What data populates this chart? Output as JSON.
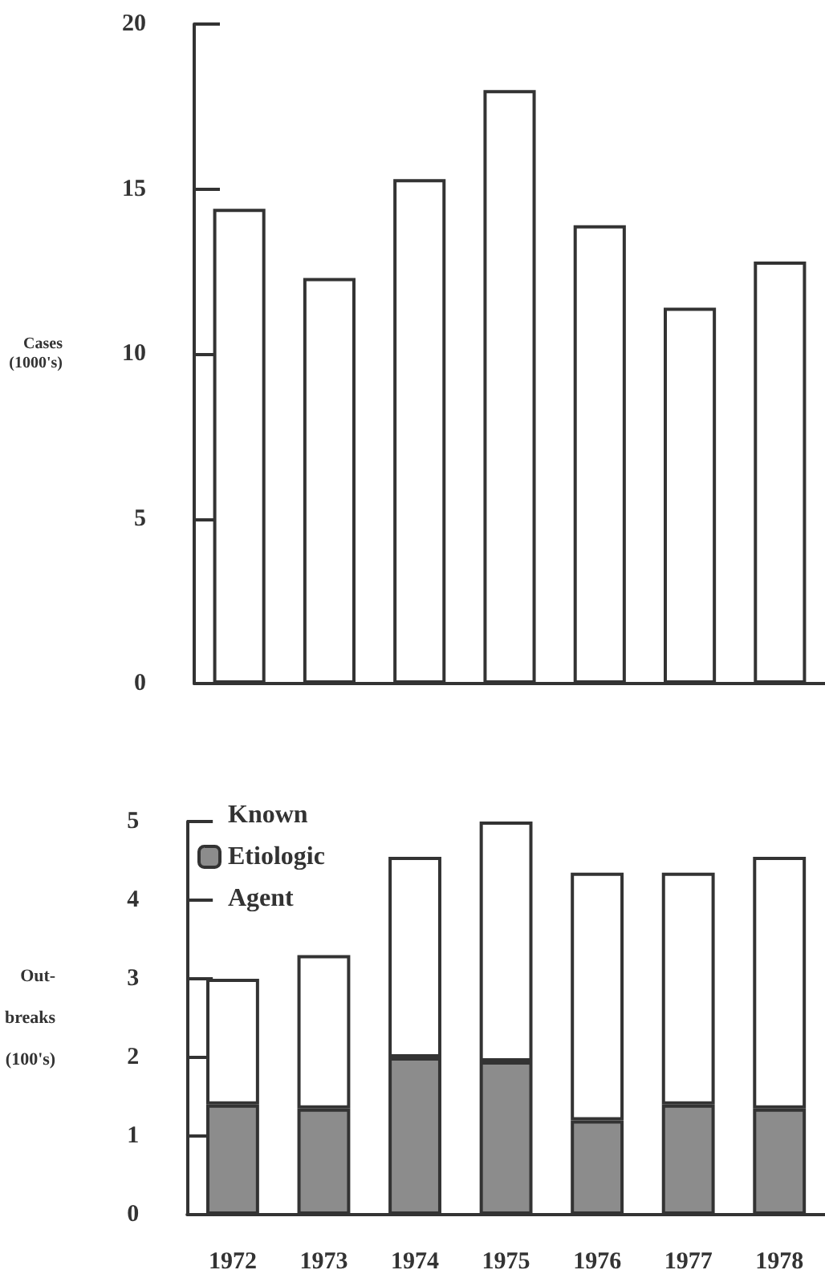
{
  "chart_data": [
    {
      "type": "bar",
      "ylabel": "Cases (1000's)",
      "categories": [
        null,
        null,
        null,
        null,
        null,
        null,
        null
      ],
      "series": [
        {
          "color": "#ffffff",
          "values": [
            14.4,
            12.3,
            15.3,
            18.0,
            13.9,
            11.4,
            12.8
          ]
        }
      ],
      "ylim": [
        0,
        20
      ],
      "yticks": [
        0,
        5,
        10,
        15,
        20
      ],
      "tick_labels": "y",
      "grid": false,
      "legend": false
    },
    {
      "type": "bar",
      "ylabel": "Out- breaks (100's)",
      "categories": [
        "1972",
        "1973",
        "1974",
        "1975",
        "1976",
        "1977",
        "1978"
      ],
      "stacked": true,
      "series": [
        {
          "name": "Known Etiologic Agent",
          "color": "#8c8c8c",
          "values": [
            1.4,
            1.35,
            2.0,
            1.95,
            1.2,
            1.4,
            1.35
          ]
        },
        {
          "color": "#ffffff",
          "values": [
            1.6,
            1.95,
            2.55,
            3.05,
            3.15,
            2.95,
            3.2
          ]
        }
      ],
      "ylim": [
        0,
        5
      ],
      "yticks": [
        0,
        1,
        2,
        3,
        4,
        5
      ],
      "grid": false,
      "legend": "top left"
    }
  ]
}
